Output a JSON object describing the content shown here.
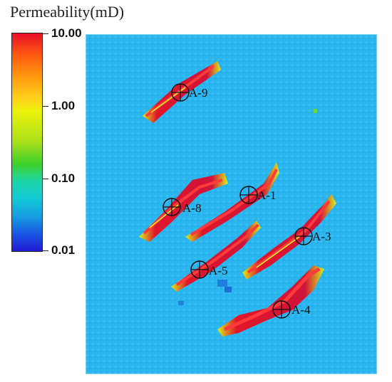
{
  "legend": {
    "title": "Permeability(mD)",
    "ticks": [
      "10.00",
      "1.00",
      "0.10",
      "0.01"
    ],
    "colors": {
      "high": "#e8102a",
      "mid_high": "#eaf20a",
      "mid": "#3ccf2a",
      "mid_low": "#12c9d8",
      "low": "#2219d6"
    }
  },
  "map": {
    "background_color": "#27b3ec",
    "wells": [
      {
        "label": "A-9"
      },
      {
        "label": "A-1"
      },
      {
        "label": "A-8"
      },
      {
        "label": "A-3"
      },
      {
        "label": "A-5"
      },
      {
        "label": "A-4"
      }
    ]
  }
}
